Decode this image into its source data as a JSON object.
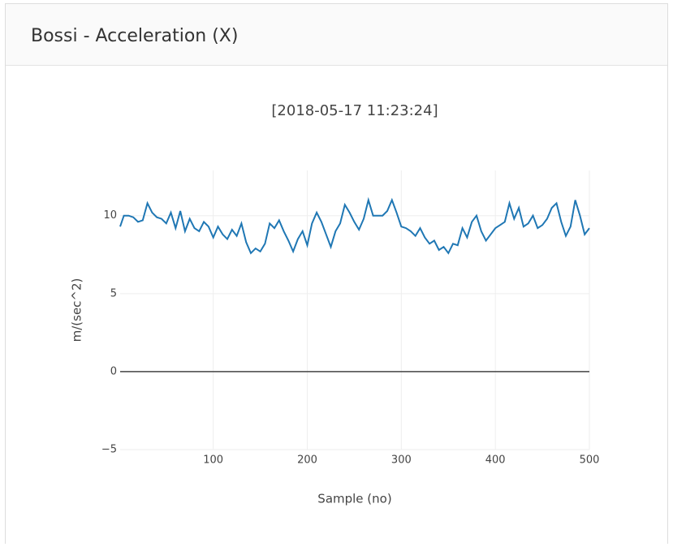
{
  "header": {
    "title": "Bossi - Acceleration (X)"
  },
  "chart_data": {
    "type": "line",
    "title": "[2018-05-17 11:23:24]",
    "x_label": "Sample (no)",
    "y_label": "m/(sec^2)",
    "x": [
      1,
      5,
      10,
      15,
      20,
      25,
      30,
      35,
      40,
      45,
      50,
      55,
      60,
      65,
      70,
      75,
      80,
      85,
      90,
      95,
      100,
      105,
      110,
      115,
      120,
      125,
      130,
      135,
      140,
      145,
      150,
      155,
      160,
      165,
      170,
      175,
      180,
      185,
      190,
      195,
      200,
      205,
      210,
      215,
      220,
      225,
      230,
      235,
      240,
      245,
      250,
      255,
      260,
      265,
      270,
      275,
      280,
      285,
      290,
      295,
      300,
      305,
      310,
      315,
      320,
      325,
      330,
      335,
      340,
      345,
      350,
      355,
      360,
      365,
      370,
      375,
      380,
      385,
      390,
      395,
      400,
      405,
      410,
      415,
      420,
      425,
      430,
      435,
      440,
      445,
      450,
      455,
      460,
      465,
      470,
      475,
      480,
      485,
      490,
      495,
      500
    ],
    "series": [
      {
        "name": "Acceleration (X)",
        "color": "#1f77b4",
        "values": [
          9.3,
          10.0,
          10.0,
          9.9,
          9.6,
          9.7,
          10.8,
          10.2,
          9.9,
          9.8,
          9.5,
          10.2,
          9.2,
          10.3,
          9.0,
          9.8,
          9.2,
          9.0,
          9.6,
          9.3,
          8.6,
          9.3,
          8.8,
          8.5,
          9.1,
          8.7,
          9.5,
          8.3,
          7.6,
          7.9,
          7.7,
          8.2,
          9.5,
          9.2,
          9.7,
          9.0,
          8.4,
          7.7,
          8.5,
          9.0,
          8.1,
          9.5,
          10.2,
          9.6,
          8.8,
          8.0,
          9.0,
          9.5,
          10.7,
          10.2,
          9.6,
          9.1,
          9.8,
          11.0,
          10.0,
          10.0,
          10.0,
          10.3,
          11.0,
          10.2,
          9.3,
          9.2,
          9.0,
          8.7,
          9.2,
          8.6,
          8.2,
          8.4,
          7.8,
          8.0,
          7.6,
          8.2,
          8.1,
          9.2,
          8.6,
          9.6,
          10.0,
          9.0,
          8.4,
          8.8,
          9.2,
          9.4,
          9.6,
          10.8,
          9.8,
          10.5,
          9.3,
          9.5,
          10.0,
          9.2,
          9.4,
          9.8,
          10.5,
          10.8,
          9.6,
          8.7,
          9.3,
          11.0,
          10.0,
          8.8,
          9.2
        ]
      }
    ],
    "xlim": [
      1,
      500
    ],
    "ylim": [
      -5,
      12.9
    ],
    "xticks": [
      100,
      200,
      300,
      400,
      500
    ],
    "yticks": [
      {
        "value": -5,
        "label": "−5"
      },
      0,
      5,
      10
    ],
    "grid": true
  }
}
